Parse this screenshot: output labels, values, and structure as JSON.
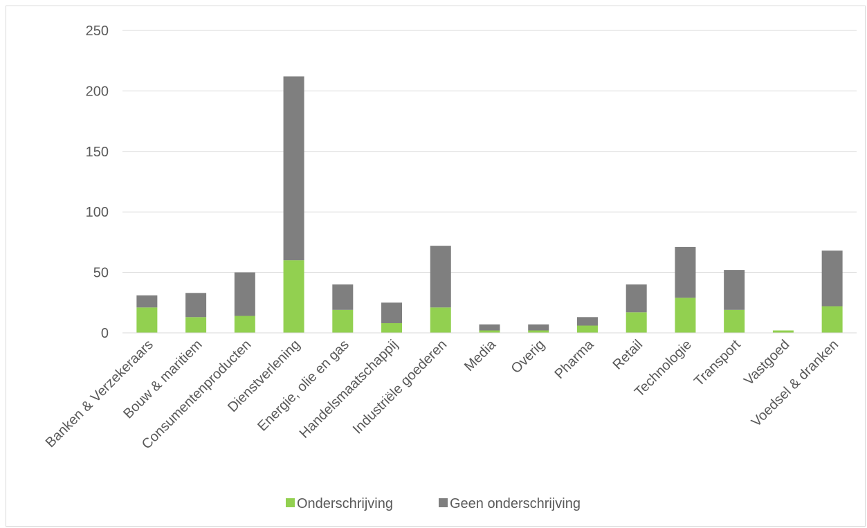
{
  "chart_data": {
    "type": "bar",
    "stacked": true,
    "categories": [
      "Banken & Verzekeraars",
      "Bouw & maritiem",
      "Consumentenproducten",
      "Dienstverlening",
      "Energie, olie en gas",
      "Handelsmaatschappij",
      "Industriële goederen",
      "Media",
      "Overig",
      "Pharma",
      "Retail",
      "Technologie",
      "Transport",
      "Vastgoed",
      "Voedsel & dranken"
    ],
    "series": [
      {
        "name": "Onderschrijving",
        "color": "#92d050",
        "values": [
          21,
          13,
          14,
          60,
          19,
          8,
          21,
          2,
          2,
          6,
          17,
          29,
          19,
          2,
          22
        ]
      },
      {
        "name": "Geen onderschrijving",
        "color": "#7f7f7f",
        "values": [
          10,
          20,
          36,
          152,
          21,
          17,
          51,
          5,
          5,
          7,
          23,
          42,
          33,
          0,
          46
        ]
      }
    ],
    "yticks": [
      "0",
      "50",
      "100",
      "150",
      "200",
      "250"
    ],
    "ylim": [
      0,
      250
    ],
    "grid": true,
    "legend_position": "bottom"
  }
}
